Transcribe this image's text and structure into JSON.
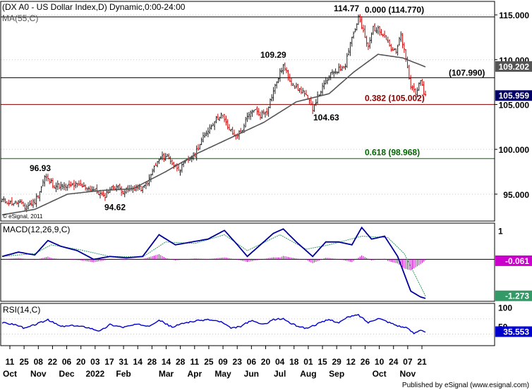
{
  "header": {
    "title": "(DX A0 - US Dollar Index,D) Dynamic,0:00-24:00",
    "ma_label": "MA(55,C)"
  },
  "copyright": "© eSignal, 2011",
  "footer": "Published by eSignal (www.esignal.com)",
  "colors": {
    "up": "#1f1f1f",
    "down": "#cc0000",
    "ma": "#555555",
    "macd": "#000099",
    "signal": "#339966",
    "hist": "#cc00cc",
    "rsi": "#0000cc",
    "fib_red": "#8b0000",
    "fib_green": "#006600",
    "price_box": "#000066"
  },
  "chart_data": [
    {
      "type": "candlestick",
      "panel": "price",
      "ylim": [
        92.0,
        116.5
      ],
      "y_ticks": [
        "115.000",
        "110.000",
        "105.000",
        "100.000",
        "95.000"
      ],
      "y_tick_values": [
        115,
        110,
        105,
        100,
        95
      ],
      "last_price": "105.959",
      "ma_value": "109.202",
      "ma_period": 55,
      "annotations": [
        {
          "text": "96.93",
          "value": 96.93
        },
        {
          "text": "94.62",
          "value": 94.62
        },
        {
          "text": "109.29",
          "value": 109.29
        },
        {
          "text": "104.63",
          "value": 104.63
        },
        {
          "text": "114.77",
          "value": 114.77
        }
      ],
      "levels": [
        {
          "label": "0.000 (114.770)",
          "value": 114.77,
          "color": "#000000"
        },
        {
          "label": "(107.990)",
          "value": 107.99,
          "color": "#000000"
        },
        {
          "label": "0.382 (105.002)",
          "value": 105.002,
          "color": "#8b0000"
        },
        {
          "label": "0.618 (98.968)",
          "value": 98.968,
          "color": "#006600"
        }
      ],
      "close_path": [
        [
          0,
          94.3
        ],
        [
          5,
          94.0
        ],
        [
          10,
          94.1
        ],
        [
          14,
          93.5
        ],
        [
          20,
          94.2
        ],
        [
          24,
          95.8
        ],
        [
          26,
          96.93
        ],
        [
          32,
          96.0
        ],
        [
          38,
          95.8
        ],
        [
          44,
          96.0
        ],
        [
          50,
          95.8
        ],
        [
          56,
          95.5
        ],
        [
          60,
          95.0
        ],
        [
          62,
          94.62
        ],
        [
          66,
          95.6
        ],
        [
          70,
          95.9
        ],
        [
          74,
          95.3
        ],
        [
          78,
          95.5
        ],
        [
          82,
          95.7
        ],
        [
          86,
          95.6
        ],
        [
          90,
          96.6
        ],
        [
          93,
          98.0
        ],
        [
          97,
          99.0
        ],
        [
          101,
          99.3
        ],
        [
          105,
          98.2
        ],
        [
          109,
          97.8
        ],
        [
          113,
          98.7
        ],
        [
          118,
          99.5
        ],
        [
          122,
          101.0
        ],
        [
          126,
          102.2
        ],
        [
          130,
          103.2
        ],
        [
          134,
          103.9
        ],
        [
          138,
          102.5
        ],
        [
          142,
          101.5
        ],
        [
          146,
          101.9
        ],
        [
          150,
          103.5
        ],
        [
          154,
          104.5
        ],
        [
          158,
          103.8
        ],
        [
          162,
          104.4
        ],
        [
          166,
          106.5
        ],
        [
          170,
          108.5
        ],
        [
          172,
          109.29
        ],
        [
          176,
          107.8
        ],
        [
          180,
          106.8
        ],
        [
          184,
          106.5
        ],
        [
          188,
          105.2
        ],
        [
          190,
          104.63
        ],
        [
          194,
          106.2
        ],
        [
          198,
          107.5
        ],
        [
          202,
          108.6
        ],
        [
          206,
          108.9
        ],
        [
          210,
          109.5
        ],
        [
          213,
          112.0
        ],
        [
          216,
          113.4
        ],
        [
          218,
          114.77
        ],
        [
          221,
          113.0
        ],
        [
          224,
          111.3
        ],
        [
          227,
          113.6
        ],
        [
          230,
          113.3
        ],
        [
          234,
          112.8
        ],
        [
          238,
          111.2
        ],
        [
          241,
          110.8
        ],
        [
          244,
          112.8
        ],
        [
          247,
          110.0
        ],
        [
          250,
          107.0
        ],
        [
          253,
          106.4
        ],
        [
          256,
          107.4
        ],
        [
          259,
          105.96
        ]
      ],
      "ma_path": [
        [
          0,
          92.7
        ],
        [
          20,
          93.3
        ],
        [
          40,
          95.0
        ],
        [
          60,
          95.4
        ],
        [
          80,
          95.6
        ],
        [
          100,
          97.5
        ],
        [
          120,
          99.6
        ],
        [
          140,
          101.3
        ],
        [
          160,
          103.0
        ],
        [
          180,
          105.3
        ],
        [
          200,
          106.2
        ],
        [
          215,
          108.6
        ],
        [
          230,
          110.6
        ],
        [
          245,
          110.2
        ],
        [
          259,
          109.2
        ]
      ]
    },
    {
      "type": "line",
      "panel": "macd",
      "title": "MACD(12,26,9,C)",
      "ylim": [
        -1.45,
        1.25
      ],
      "y_ticks": [
        "1"
      ],
      "y_tick_values": [
        1
      ],
      "last_value": "-0.061",
      "signal_last": "-1.273",
      "macd_path": [
        [
          0,
          0.1
        ],
        [
          10,
          0.25
        ],
        [
          20,
          0.15
        ],
        [
          28,
          0.65
        ],
        [
          36,
          0.45
        ],
        [
          46,
          0.3
        ],
        [
          56,
          0.0
        ],
        [
          66,
          0.1
        ],
        [
          76,
          0.05
        ],
        [
          86,
          0.1
        ],
        [
          96,
          0.85
        ],
        [
          106,
          0.5
        ],
        [
          116,
          0.6
        ],
        [
          126,
          0.7
        ],
        [
          136,
          1.0
        ],
        [
          144,
          0.5
        ],
        [
          150,
          0.1
        ],
        [
          158,
          0.5
        ],
        [
          166,
          0.9
        ],
        [
          172,
          1.05
        ],
        [
          180,
          0.6
        ],
        [
          190,
          0.1
        ],
        [
          198,
          0.6
        ],
        [
          206,
          0.6
        ],
        [
          214,
          0.5
        ],
        [
          220,
          1.1
        ],
        [
          226,
          0.7
        ],
        [
          234,
          0.8
        ],
        [
          242,
          0.1
        ],
        [
          250,
          -1.1
        ],
        [
          256,
          -1.3
        ],
        [
          259,
          -1.35
        ]
      ],
      "signal_path": [
        [
          0,
          0.1
        ],
        [
          20,
          0.2
        ],
        [
          30,
          0.5
        ],
        [
          46,
          0.35
        ],
        [
          66,
          0.1
        ],
        [
          86,
          0.08
        ],
        [
          100,
          0.6
        ],
        [
          118,
          0.55
        ],
        [
          136,
          0.85
        ],
        [
          150,
          0.3
        ],
        [
          170,
          0.85
        ],
        [
          186,
          0.35
        ],
        [
          200,
          0.5
        ],
        [
          220,
          0.8
        ],
        [
          236,
          0.75
        ],
        [
          246,
          0.2
        ],
        [
          254,
          -0.7
        ],
        [
          259,
          -1.27
        ]
      ]
    },
    {
      "type": "line",
      "panel": "rsi",
      "title": "RSI(14,C)",
      "ylim": [
        0,
        110
      ],
      "y_ticks": [
        "100",
        "50"
      ],
      "y_tick_values": [
        100,
        50
      ],
      "last_value": "35.553",
      "rsi_path": [
        [
          0,
          60
        ],
        [
          8,
          55
        ],
        [
          14,
          45
        ],
        [
          22,
          58
        ],
        [
          28,
          67
        ],
        [
          36,
          50
        ],
        [
          44,
          52
        ],
        [
          52,
          48
        ],
        [
          60,
          38
        ],
        [
          66,
          55
        ],
        [
          74,
          48
        ],
        [
          82,
          55
        ],
        [
          90,
          52
        ],
        [
          96,
          67
        ],
        [
          104,
          48
        ],
        [
          112,
          60
        ],
        [
          120,
          65
        ],
        [
          126,
          68
        ],
        [
          134,
          62
        ],
        [
          140,
          45
        ],
        [
          146,
          50
        ],
        [
          152,
          65
        ],
        [
          160,
          55
        ],
        [
          166,
          68
        ],
        [
          172,
          70
        ],
        [
          178,
          55
        ],
        [
          186,
          45
        ],
        [
          192,
          55
        ],
        [
          200,
          68
        ],
        [
          206,
          60
        ],
        [
          212,
          75
        ],
        [
          218,
          80
        ],
        [
          224,
          60
        ],
        [
          230,
          72
        ],
        [
          236,
          62
        ],
        [
          242,
          52
        ],
        [
          248,
          45
        ],
        [
          252,
          32
        ],
        [
          256,
          42
        ],
        [
          259,
          35.6
        ]
      ]
    }
  ],
  "x_axis": {
    "days": [
      "11",
      "25",
      "08",
      "22",
      "06",
      "20",
      "03",
      "17",
      "31",
      "14",
      "28",
      "14",
      "28",
      "11",
      "25",
      "09",
      "23",
      "06",
      "20",
      "04",
      "18",
      "01",
      "15",
      "29",
      "12",
      "26",
      "10",
      "24",
      "07",
      "21"
    ],
    "months": [
      {
        "label": "Oct",
        "day_index": 0
      },
      {
        "label": "Nov",
        "day_index": 2
      },
      {
        "label": "Dec",
        "day_index": 4
      },
      {
        "label": "2022",
        "day_index": 6
      },
      {
        "label": "Feb",
        "day_index": 8
      },
      {
        "label": "Mar",
        "day_index": 11
      },
      {
        "label": "Apr",
        "day_index": 13
      },
      {
        "label": "May",
        "day_index": 15
      },
      {
        "label": "Jun",
        "day_index": 17
      },
      {
        "label": "Jul",
        "day_index": 19
      },
      {
        "label": "Aug",
        "day_index": 21
      },
      {
        "label": "Sep",
        "day_index": 23
      },
      {
        "label": "Oct",
        "day_index": 26
      },
      {
        "label": "Nov",
        "day_index": 28
      }
    ]
  }
}
